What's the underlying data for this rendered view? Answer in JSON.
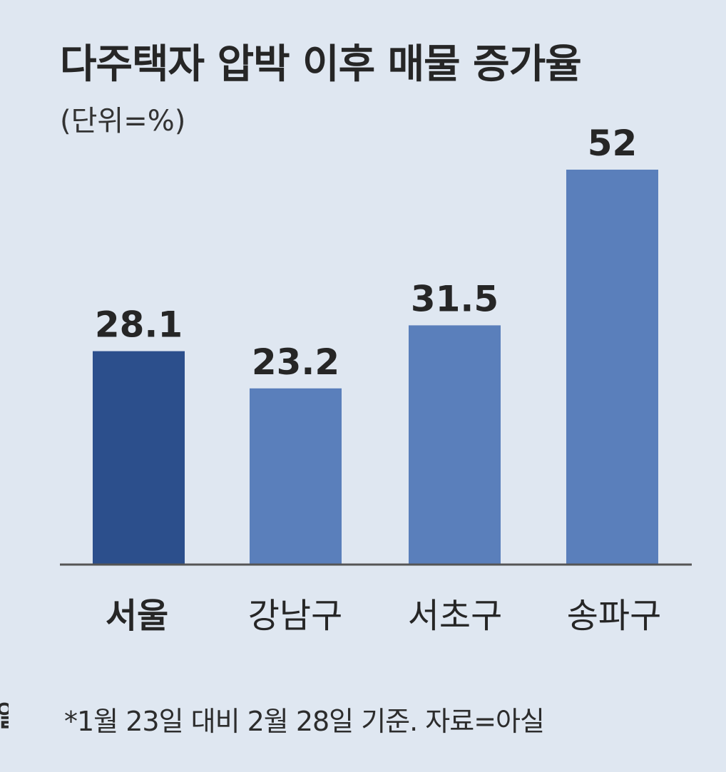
{
  "title": "다주택자 압박 이후 매물 증가율",
  "unit": "(단위=%)",
  "footnote": "*1월 23일 대비 2월 28일 기준. 자료=아실",
  "chart_data": {
    "type": "bar",
    "title": "다주택자 압박 이후 매물 증가율",
    "subtitle": "(단위=%)",
    "categories": [
      "서울",
      "강남구",
      "서초구",
      "송파구"
    ],
    "values": [
      28.1,
      23.2,
      31.5,
      52
    ],
    "value_labels": [
      "28.1",
      "23.2",
      "31.5",
      "52"
    ],
    "ylim": [
      0,
      52
    ],
    "grid": false,
    "legend": "none",
    "colors": {
      "highlight": "#2c4f8c",
      "default": "#5a7fbb",
      "axis": "#555555",
      "text": "#262626"
    }
  }
}
